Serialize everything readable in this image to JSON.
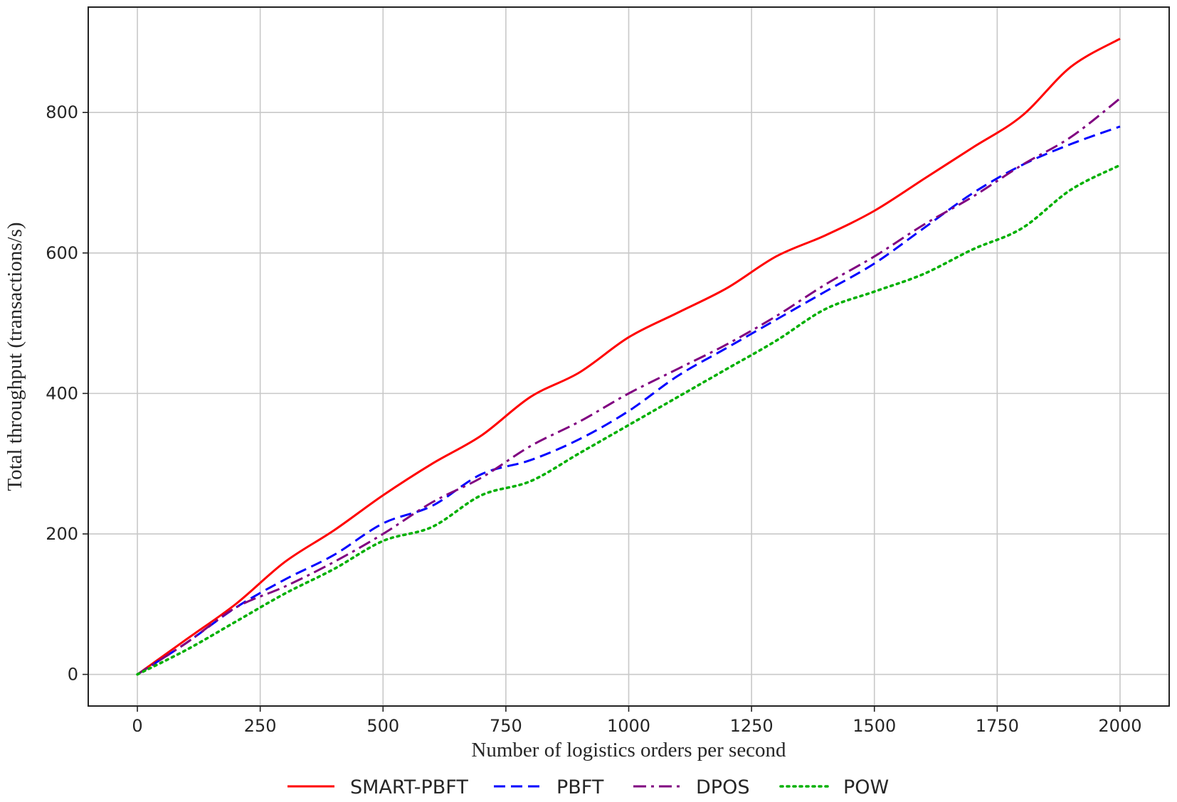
{
  "chart_data": {
    "type": "line",
    "title": "",
    "xlabel": "Number of logistics orders per second",
    "ylabel": "Total throughput (transactions/s)",
    "xlim": [
      -100,
      2100
    ],
    "ylim": [
      -45,
      950
    ],
    "xticks": [
      0,
      250,
      500,
      750,
      1000,
      1250,
      1500,
      1750,
      2000
    ],
    "yticks": [
      0,
      200,
      400,
      600,
      800
    ],
    "grid": true,
    "legend_position": "below",
    "x": [
      0,
      100,
      200,
      300,
      400,
      500,
      600,
      700,
      800,
      900,
      1000,
      1100,
      1200,
      1300,
      1400,
      1500,
      1600,
      1700,
      1800,
      1900,
      2000
    ],
    "series": [
      {
        "name": "SMART-PBFT",
        "color": "#ff0000",
        "dash": "solid",
        "values": [
          0,
          50,
          100,
          160,
          205,
          255,
          300,
          340,
          395,
          430,
          480,
          515,
          550,
          595,
          625,
          660,
          705,
          750,
          795,
          865,
          905
        ]
      },
      {
        "name": "PBFT",
        "color": "#0000ff",
        "dash": "dashed",
        "values": [
          0,
          45,
          95,
          135,
          170,
          215,
          240,
          285,
          305,
          335,
          375,
          425,
          465,
          505,
          545,
          585,
          635,
          685,
          725,
          755,
          780
        ]
      },
      {
        "name": "DPOS",
        "color": "#800080",
        "dash": "dashdot",
        "values": [
          0,
          45,
          95,
          125,
          160,
          200,
          245,
          280,
          325,
          360,
          400,
          435,
          470,
          510,
          555,
          595,
          640,
          680,
          725,
          765,
          820
        ]
      },
      {
        "name": "POW",
        "color": "#00b000",
        "dash": "dotted",
        "values": [
          0,
          35,
          75,
          115,
          150,
          190,
          210,
          255,
          275,
          315,
          355,
          395,
          435,
          475,
          520,
          545,
          570,
          605,
          635,
          690,
          725
        ]
      }
    ]
  }
}
